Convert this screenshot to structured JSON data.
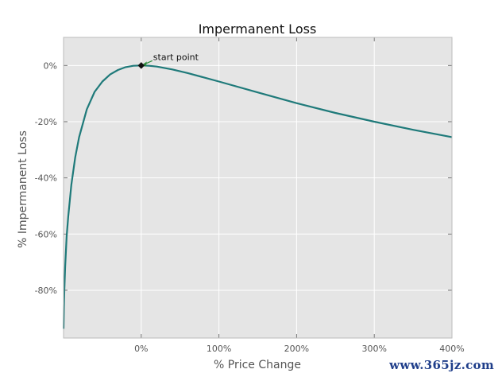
{
  "chart_data": {
    "type": "line",
    "title": "Impermanent Loss",
    "xlabel": "% Price Change",
    "ylabel": "% Impermanent Loss",
    "xlim": [
      -100,
      400
    ],
    "ylim": [
      -97,
      10
    ],
    "grid": true,
    "x_ticks": [
      {
        "value": 0,
        "label": "0%"
      },
      {
        "value": 100,
        "label": "100%"
      },
      {
        "value": 200,
        "label": "200%"
      },
      {
        "value": 300,
        "label": "300%"
      },
      {
        "value": 400,
        "label": "400%"
      }
    ],
    "y_ticks": [
      {
        "value": 0,
        "label": "0%"
      },
      {
        "value": -20,
        "label": "-20%"
      },
      {
        "value": -40,
        "label": "-40%"
      },
      {
        "value": -60,
        "label": "-60%"
      },
      {
        "value": -80,
        "label": "-80%"
      }
    ],
    "series": [
      {
        "color": "#1f7a7a",
        "x": [
          -99.9,
          -99.5,
          -99,
          -98,
          -96,
          -94,
          -90,
          -85,
          -80,
          -70,
          -60,
          -50,
          -40,
          -30,
          -20,
          -10,
          0,
          10,
          20,
          40,
          60,
          80,
          100,
          150,
          200,
          250,
          300,
          350,
          400
        ],
        "y": [
          -93.7,
          -85.9,
          -80.1,
          -71.9,
          -60.8,
          -53.8,
          -42.5,
          -32.7,
          -25.5,
          -15.6,
          -9.4,
          -5.7,
          -3.2,
          -1.6,
          -0.6,
          -0.1,
          0,
          -0.1,
          -0.4,
          -1.4,
          -2.7,
          -4.2,
          -5.7,
          -9.6,
          -13.4,
          -16.9,
          -20.0,
          -22.9,
          -25.5
        ]
      }
    ],
    "annotation": {
      "text": "start point",
      "x": 0,
      "y": 0
    }
  },
  "watermark": "www.365jz.com"
}
